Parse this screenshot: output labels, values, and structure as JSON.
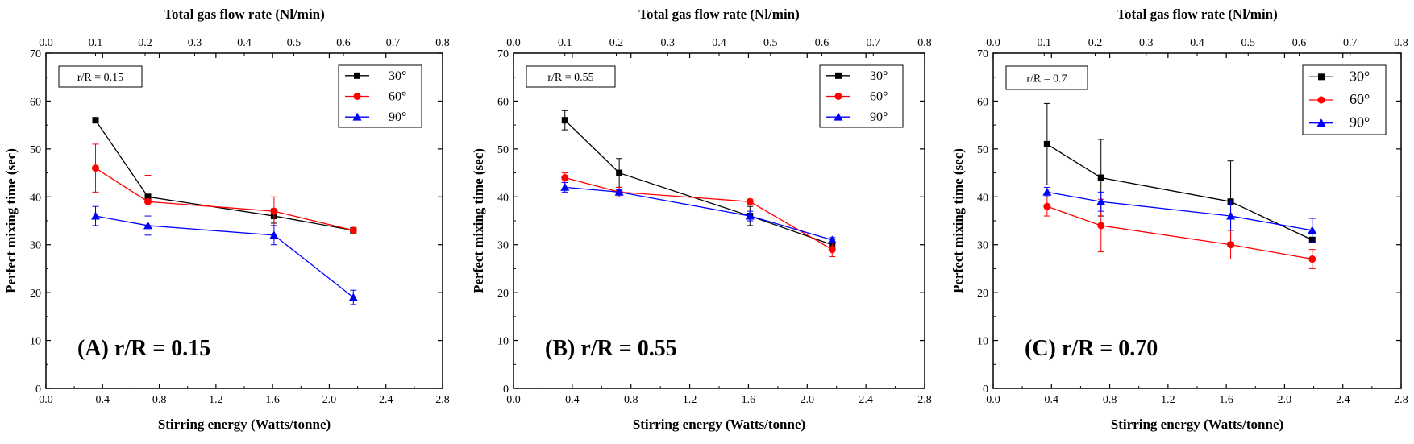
{
  "chart_data": [
    {
      "type": "line",
      "panel_label": "(A) r/R = 0.15",
      "inset_label": "r/R = 0.15",
      "xlabel": "Stirring energy (Watts/tonne)",
      "ylabel": "Perfect mixing time (sec)",
      "x2label": "Total gas flow rate (Nl/min)",
      "xlim": [
        0.0,
        2.8
      ],
      "ylim": [
        0,
        70
      ],
      "x2lim": [
        0.0,
        0.8
      ],
      "xticks": [
        "0.0",
        "0.4",
        "0.8",
        "1.2",
        "1.6",
        "2.0",
        "2.4",
        "2.8"
      ],
      "yticks": [
        "0",
        "10",
        "20",
        "30",
        "40",
        "50",
        "60",
        "70"
      ],
      "x2ticks": [
        "0.0",
        "0.1",
        "0.2",
        "0.3",
        "0.4",
        "0.5",
        "0.6",
        "0.7",
        "0.8"
      ],
      "legend_position": "top-right",
      "series": [
        {
          "name": "30°",
          "color": "#000000",
          "marker": "square",
          "x": [
            0.35,
            0.72,
            1.61,
            2.17
          ],
          "y": [
            56,
            40,
            36,
            33
          ],
          "err": [
            0,
            0,
            1.5,
            0
          ]
        },
        {
          "name": "60°",
          "color": "#ff0000",
          "marker": "circle",
          "x": [
            0.35,
            0.72,
            1.61,
            2.17
          ],
          "y": [
            46,
            39,
            37,
            33
          ],
          "err": [
            5,
            5.5,
            3,
            0
          ]
        },
        {
          "name": "90°",
          "color": "#0000ff",
          "marker": "triangle",
          "x": [
            0.35,
            0.72,
            1.61,
            2.17
          ],
          "y": [
            36,
            34,
            32,
            19
          ],
          "err": [
            2,
            2,
            2,
            1.5
          ]
        }
      ]
    },
    {
      "type": "line",
      "panel_label": "(B) r/R = 0.55",
      "inset_label": "r/R = 0.55",
      "xlabel": "Stirring energy (Watts/tonne)",
      "ylabel": "Perfect mixing time (sec)",
      "x2label": "Total gas flow rate (Nl/min)",
      "xlim": [
        0.0,
        2.8
      ],
      "ylim": [
        0,
        70
      ],
      "x2lim": [
        0.0,
        0.8
      ],
      "xticks": [
        "0.0",
        "0.4",
        "0.8",
        "1.2",
        "1.6",
        "2.0",
        "2.4",
        "2.8"
      ],
      "yticks": [
        "0",
        "10",
        "20",
        "30",
        "40",
        "50",
        "60",
        "70"
      ],
      "x2ticks": [
        "0.0",
        "0.1",
        "0.2",
        "0.3",
        "0.4",
        "0.5",
        "0.6",
        "0.7",
        "0.8"
      ],
      "legend_position": "top-right",
      "series": [
        {
          "name": "30°",
          "color": "#000000",
          "marker": "square",
          "x": [
            0.35,
            0.72,
            1.61,
            2.17
          ],
          "y": [
            56,
            45,
            36,
            30
          ],
          "err": [
            2,
            3,
            2,
            1
          ]
        },
        {
          "name": "60°",
          "color": "#ff0000",
          "marker": "circle",
          "x": [
            0.35,
            0.72,
            1.61,
            2.17
          ],
          "y": [
            44,
            41,
            39,
            29
          ],
          "err": [
            1,
            1,
            0.5,
            1.5
          ]
        },
        {
          "name": "90°",
          "color": "#0000ff",
          "marker": "triangle",
          "x": [
            0.35,
            0.72,
            1.61,
            2.17
          ],
          "y": [
            42,
            41,
            36,
            31
          ],
          "err": [
            1,
            0.5,
            1,
            0.5
          ]
        }
      ]
    },
    {
      "type": "line",
      "panel_label": "(C) r/R = 0.70",
      "inset_label": "r/R = 0.7",
      "xlabel": "Stirring energy (Watts/tonne)",
      "ylabel": "Perfect mixing time (sec)",
      "x2label": "Total gas flow rate (Nl/min)",
      "xlim": [
        0.0,
        2.8
      ],
      "ylim": [
        0,
        70
      ],
      "x2lim": [
        0.0,
        0.8
      ],
      "xticks": [
        "0.0",
        "0.4",
        "0.8",
        "1.2",
        "1.6",
        "2.0",
        "2.4",
        "2.8"
      ],
      "yticks": [
        "0",
        "10",
        "20",
        "30",
        "40",
        "50",
        "60",
        "70"
      ],
      "x2ticks": [
        "0.0",
        "0.1",
        "0.2",
        "0.3",
        "0.4",
        "0.5",
        "0.6",
        "0.7",
        "0.8"
      ],
      "legend_position": "top-right",
      "series": [
        {
          "name": "30°",
          "color": "#000000",
          "marker": "square",
          "x": [
            0.37,
            0.74,
            1.63,
            2.19
          ],
          "y": [
            51,
            44,
            39,
            31
          ],
          "err": [
            8.5,
            8,
            8.5,
            0
          ]
        },
        {
          "name": "60°",
          "color": "#ff0000",
          "marker": "circle",
          "x": [
            0.37,
            0.74,
            1.63,
            2.19
          ],
          "y": [
            38,
            34,
            30,
            27
          ],
          "err": [
            2,
            5.5,
            3,
            2
          ]
        },
        {
          "name": "90°",
          "color": "#0000ff",
          "marker": "triangle",
          "x": [
            0.37,
            0.74,
            1.63,
            2.19
          ],
          "y": [
            41,
            39,
            36,
            33
          ],
          "err": [
            1,
            2,
            3,
            2.5
          ]
        }
      ]
    }
  ]
}
